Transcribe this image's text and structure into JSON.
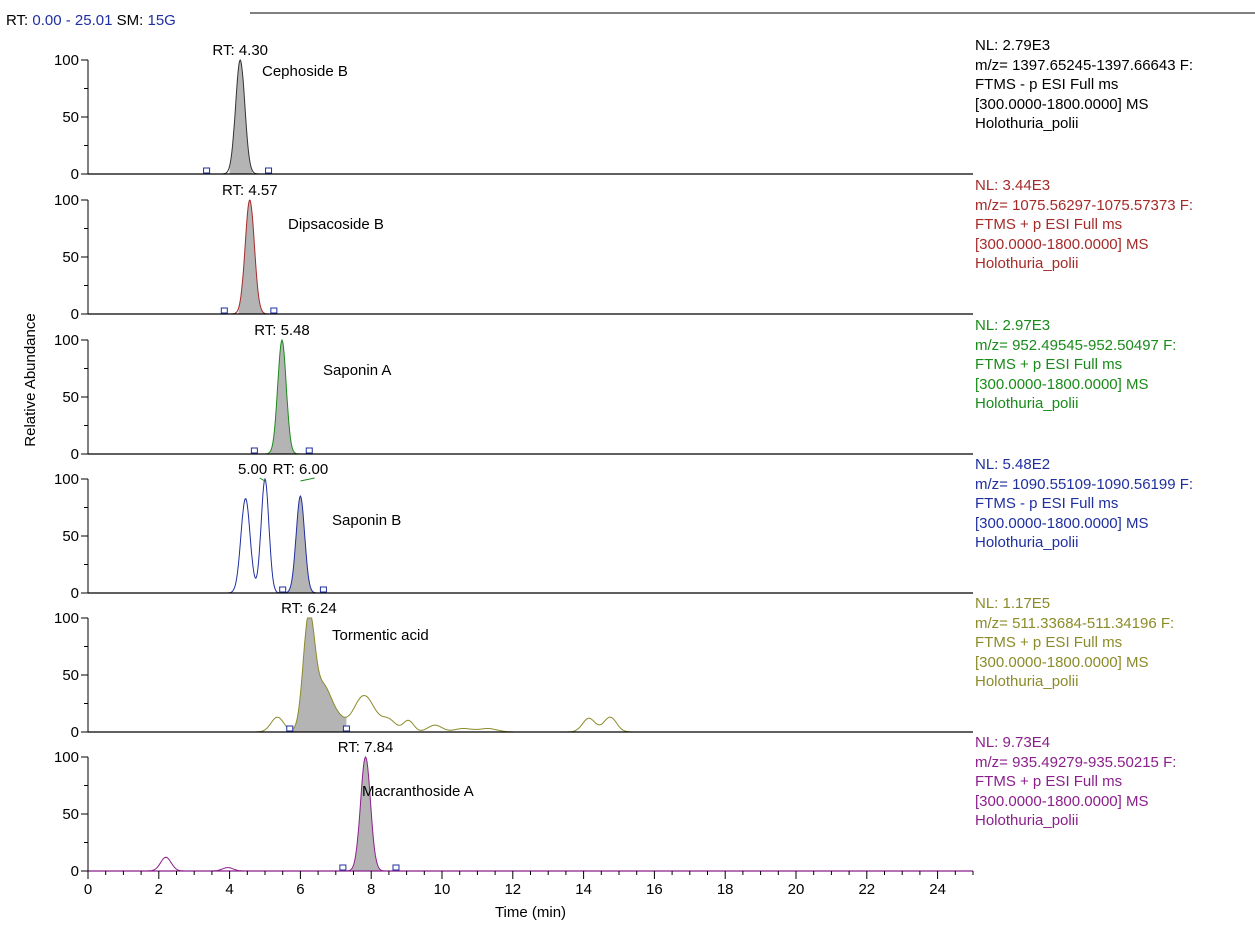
{
  "header": {
    "rt_label": "RT:",
    "rt_range": "0.00 - 25.01",
    "sm_label": "SM:",
    "sm_value": "15G"
  },
  "chart_data": {
    "type": "line",
    "xlabel": "Time (min)",
    "ylabel": "Relative Abundance",
    "xlim": [
      0,
      25
    ],
    "x_ticks": [
      "0",
      "2",
      "4",
      "6",
      "8",
      "10",
      "12",
      "14",
      "16",
      "18",
      "20",
      "22",
      "24"
    ],
    "ylim": [
      0,
      100
    ],
    "y_ticks": [
      "0",
      "50",
      "100"
    ],
    "panels": [
      {
        "name": "Cephoside B",
        "color": "#333333",
        "rt_label": "RT: 4.30",
        "nl": "NL: 2.79E3",
        "mz": "m/z= 1397.65245-1397.66643 F:",
        "scan": "FTMS - p ESI Full ms",
        "range": "[300.0000-1800.0000]  MS",
        "sample": "Holothuria_polii",
        "peaks": [
          {
            "rt": 4.3,
            "height": 100,
            "width": 0.13
          }
        ],
        "shaded_range": [
          4.0,
          4.65
        ],
        "markers": [
          3.35,
          5.1
        ]
      },
      {
        "name": "Dipsacoside B",
        "color": "#a52a2a",
        "rt_label": "RT: 4.57",
        "nl": "NL: 3.44E3",
        "mz": "m/z= 1075.56297-1075.57373 F:",
        "scan": "FTMS + p ESI Full ms",
        "range": "[300.0000-1800.0000]  MS",
        "sample": "Holothuria_polii",
        "peaks": [
          {
            "rt": 4.57,
            "height": 100,
            "width": 0.13
          }
        ],
        "shaded_range": [
          4.25,
          4.95
        ],
        "markers": [
          3.85,
          5.25
        ]
      },
      {
        "name": "Saponin A",
        "color": "#1a8a1a",
        "rt_label": "RT: 5.48",
        "nl": "NL: 2.97E3",
        "mz": "m/z= 952.49545-952.50497 F:",
        "scan": "FTMS + p ESI Full ms",
        "range": "[300.0000-1800.0000]  MS",
        "sample": "Holothuria_polii",
        "peaks": [
          {
            "rt": 5.48,
            "height": 100,
            "width": 0.12
          }
        ],
        "shaded_range": [
          5.15,
          5.85
        ],
        "markers": [
          4.7,
          6.25
        ]
      },
      {
        "name": "Saponin B",
        "color": "#1f2fa0",
        "rt_label": "RT: 6.00",
        "extra_label": "5.00",
        "nl": "NL: 5.48E2",
        "mz": "m/z= 1090.55109-1090.56199 F:",
        "scan": "FTMS - p ESI Full ms",
        "range": "[300.0000-1800.0000]  MS",
        "sample": "Holothuria_polii",
        "peaks": [
          {
            "rt": 4.45,
            "height": 83,
            "width": 0.13
          },
          {
            "rt": 5.0,
            "height": 100,
            "width": 0.11
          },
          {
            "rt": 6.0,
            "height": 85,
            "width": 0.12
          }
        ],
        "shaded_range": [
          5.65,
          6.4
        ],
        "markers": [
          5.5,
          6.65
        ]
      },
      {
        "name": "Tormentic acid",
        "color": "#8b8b2a",
        "rt_label": "RT: 6.24",
        "nl": "NL: 1.17E5",
        "mz": "m/z= 511.33684-511.34196 F:",
        "scan": "FTMS + p ESI Full ms",
        "range": "[300.0000-1800.0000]  MS",
        "sample": "Holothuria_polii",
        "peaks": [
          {
            "rt": 5.35,
            "height": 13,
            "width": 0.18
          },
          {
            "rt": 6.24,
            "height": 100,
            "width": 0.16
          },
          {
            "rt": 6.65,
            "height": 38,
            "width": 0.22
          },
          {
            "rt": 7.05,
            "height": 10,
            "width": 0.2
          },
          {
            "rt": 7.8,
            "height": 32,
            "width": 0.3
          },
          {
            "rt": 8.5,
            "height": 10,
            "width": 0.2
          },
          {
            "rt": 9.05,
            "height": 10,
            "width": 0.15
          },
          {
            "rt": 9.8,
            "height": 6,
            "width": 0.2
          },
          {
            "rt": 10.6,
            "height": 3,
            "width": 0.25
          },
          {
            "rt": 11.3,
            "height": 3,
            "width": 0.25
          },
          {
            "rt": 14.15,
            "height": 12,
            "width": 0.18
          },
          {
            "rt": 14.75,
            "height": 13,
            "width": 0.18
          }
        ],
        "shaded_range": [
          5.75,
          7.3
        ],
        "markers": [
          5.7,
          7.3
        ]
      },
      {
        "name": "Macranthoside A",
        "color": "#8b1f8b",
        "rt_label": "RT: 7.84",
        "nl": "NL: 9.73E4",
        "mz": "m/z= 935.49279-935.50215 F:",
        "scan": "FTMS + p ESI Full ms",
        "range": "[300.0000-1800.0000]  MS",
        "sample": "Holothuria_polii",
        "peaks": [
          {
            "rt": 2.2,
            "height": 12,
            "width": 0.15
          },
          {
            "rt": 3.95,
            "height": 3,
            "width": 0.15
          },
          {
            "rt": 7.84,
            "height": 100,
            "width": 0.14
          }
        ],
        "shaded_range": [
          7.45,
          8.25
        ],
        "markers": [
          7.2,
          8.7
        ]
      }
    ]
  }
}
